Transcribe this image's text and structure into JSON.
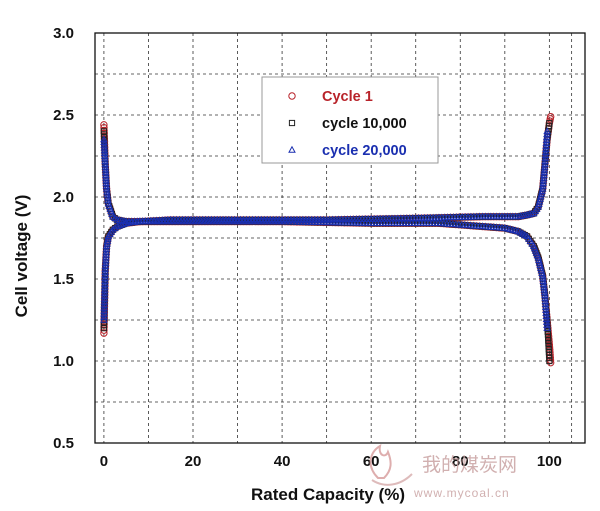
{
  "chart_data": {
    "type": "scatter",
    "xlabel": "Rated Capacity (%)",
    "ylabel": "Cell voltage (V)",
    "xlim": [
      -2,
      108
    ],
    "ylim": [
      0.5,
      3.0
    ],
    "xticks": [
      0,
      20,
      40,
      60,
      80,
      100
    ],
    "yticks": [
      0.5,
      1.0,
      1.5,
      2.0,
      2.5,
      3.0
    ],
    "xtick_labels": [
      "0",
      "20",
      "40",
      "60",
      "80",
      "100"
    ],
    "ytick_labels": [
      "0.5",
      "1.0",
      "1.5",
      "2.0",
      "2.5",
      "3.0"
    ],
    "grid": true,
    "legend_position": "top-center",
    "series": [
      {
        "name": "Cycle 1",
        "marker": "circle",
        "color": "#b8232a",
        "label_color": "#b8232a",
        "charge": {
          "x": [
            0,
            0.3,
            0.6,
            1,
            2,
            3,
            5,
            8,
            15,
            30,
            50,
            70,
            85,
            90,
            93,
            95,
            96.5,
            97.5,
            98.5,
            99,
            99.5,
            100,
            100.3
          ],
          "y": [
            1.17,
            1.55,
            1.7,
            1.76,
            1.8,
            1.82,
            1.84,
            1.85,
            1.86,
            1.86,
            1.86,
            1.87,
            1.88,
            1.88,
            1.88,
            1.89,
            1.9,
            1.94,
            2.05,
            2.2,
            2.35,
            2.45,
            2.49
          ]
        },
        "discharge": {
          "x": [
            0,
            0.3,
            0.6,
            1,
            2,
            3,
            5,
            10,
            20,
            40,
            60,
            75,
            85,
            90,
            93,
            95,
            96.5,
            97.5,
            98.5,
            99,
            99.5,
            100,
            100.3
          ],
          "y": [
            2.44,
            2.2,
            2.05,
            1.96,
            1.88,
            1.86,
            1.85,
            1.85,
            1.85,
            1.85,
            1.84,
            1.84,
            1.82,
            1.81,
            1.79,
            1.76,
            1.7,
            1.63,
            1.52,
            1.4,
            1.25,
            1.1,
            0.99
          ]
        }
      },
      {
        "name": "cycle 10,000",
        "marker": "square",
        "color": "#222222",
        "label_color": "#111111",
        "charge": {
          "x": [
            0,
            0.3,
            0.6,
            1,
            2,
            3,
            5,
            8,
            15,
            30,
            50,
            70,
            85,
            90,
            93,
            95,
            96.5,
            97.5,
            98.5,
            99,
            99.5,
            100
          ],
          "y": [
            1.2,
            1.55,
            1.7,
            1.76,
            1.8,
            1.82,
            1.84,
            1.85,
            1.86,
            1.86,
            1.86,
            1.87,
            1.88,
            1.88,
            1.88,
            1.89,
            1.9,
            1.94,
            2.05,
            2.2,
            2.35,
            2.45
          ]
        },
        "discharge": {
          "x": [
            0,
            0.3,
            0.6,
            1,
            2,
            3,
            5,
            10,
            20,
            40,
            60,
            75,
            85,
            90,
            93,
            95,
            96.5,
            97.5,
            98.5,
            99,
            99.5,
            100
          ],
          "y": [
            2.4,
            2.2,
            2.05,
            1.96,
            1.88,
            1.86,
            1.85,
            1.85,
            1.85,
            1.85,
            1.84,
            1.84,
            1.82,
            1.81,
            1.79,
            1.76,
            1.7,
            1.63,
            1.52,
            1.4,
            1.25,
            1.0
          ]
        }
      },
      {
        "name": "cycle 20,000",
        "marker": "triangle",
        "color": "#1a2fb0",
        "label_color": "#1a2fb0",
        "charge": {
          "x": [
            0,
            0.3,
            0.6,
            1,
            2,
            3,
            5,
            8,
            15,
            30,
            50,
            70,
            85,
            90,
            93,
            95,
            96.5,
            97.5,
            98.5,
            99,
            99.5
          ],
          "y": [
            1.25,
            1.56,
            1.7,
            1.76,
            1.8,
            1.82,
            1.84,
            1.85,
            1.86,
            1.86,
            1.86,
            1.87,
            1.88,
            1.88,
            1.88,
            1.89,
            1.9,
            1.94,
            2.05,
            2.2,
            2.4
          ]
        },
        "discharge": {
          "x": [
            0,
            0.3,
            0.6,
            1,
            2,
            3,
            5,
            10,
            20,
            40,
            60,
            75,
            85,
            90,
            93,
            95,
            96.5,
            97.5,
            98.5,
            99,
            99.5
          ],
          "y": [
            2.35,
            2.2,
            2.05,
            1.96,
            1.88,
            1.86,
            1.85,
            1.85,
            1.85,
            1.85,
            1.84,
            1.84,
            1.82,
            1.81,
            1.79,
            1.76,
            1.7,
            1.63,
            1.52,
            1.4,
            1.2
          ]
        }
      }
    ]
  },
  "watermark": {
    "chinese": "我的煤炭网",
    "url": "www.mycoal.cn"
  }
}
